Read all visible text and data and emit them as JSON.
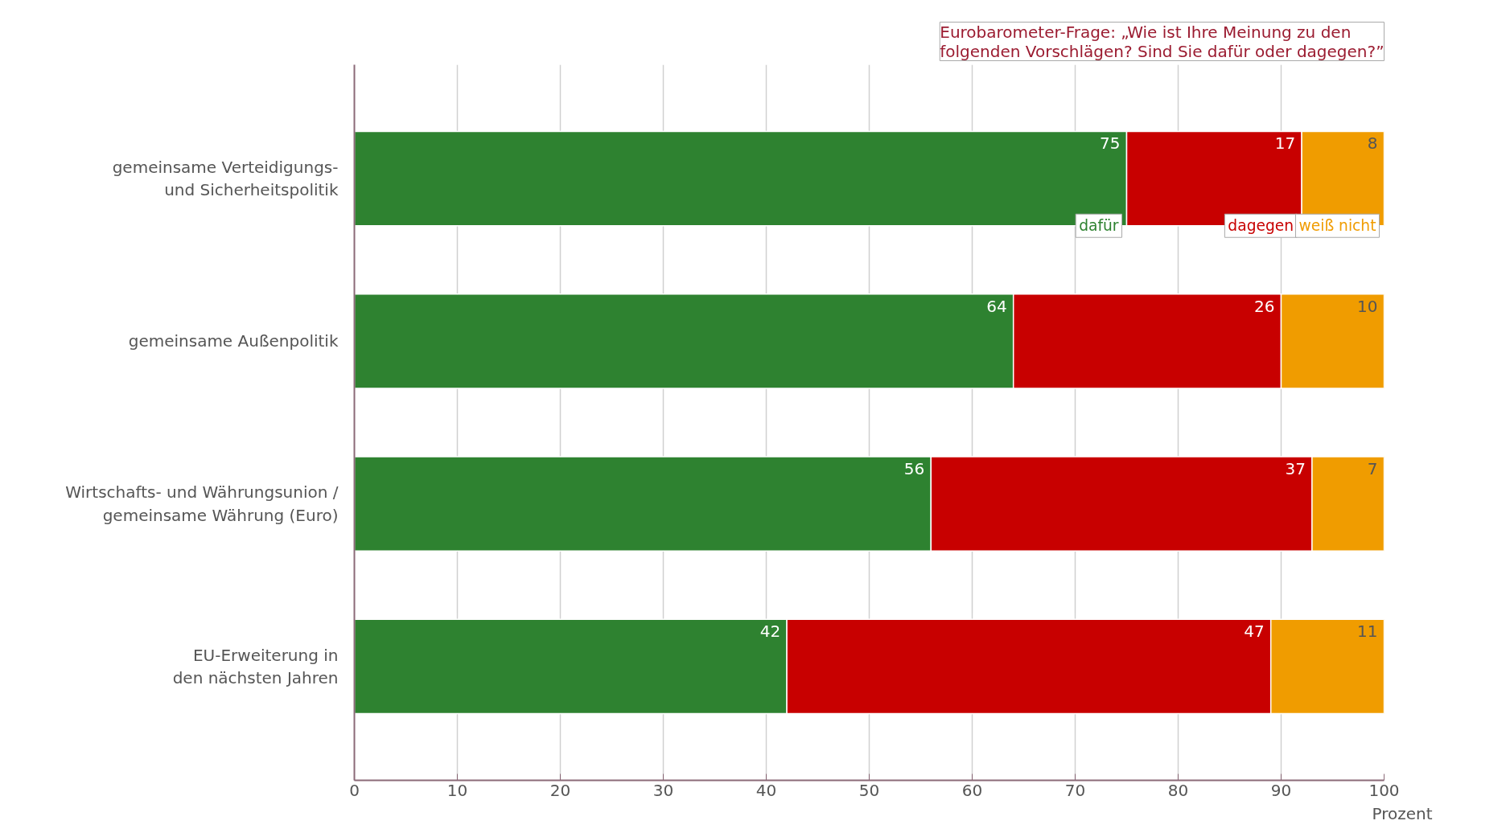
{
  "chart_data": {
    "type": "bar",
    "orientation": "horizontal",
    "stacked": true,
    "title": "Eurobarometer-Frage: „Wie ist Ihre Meinung zu den\nfolgenden Vorschlägen? Sind Sie dafür oder dagegen?”",
    "xlabel": "Prozent",
    "categories": [
      "gemeinsame Verteidigungs-\nund Sicherheitspolitik",
      "gemeinsame Außenpolitik",
      "Wirtschafts- und Währungsunion /\ngemeinsame Währung (Euro)",
      "EU-Erweiterung in\nden nächsten Jahren"
    ],
    "series": [
      {
        "name": "dafür",
        "color": "#2e8230",
        "values": [
          75,
          64,
          56,
          42
        ]
      },
      {
        "name": "dagegen",
        "color": "#c80000",
        "values": [
          17,
          26,
          37,
          47
        ]
      },
      {
        "name": "weiß nicht",
        "color": "#f09c00",
        "values": [
          8,
          10,
          7,
          11
        ]
      }
    ],
    "xlim": [
      0,
      100
    ],
    "xticks": [
      0,
      10,
      20,
      30,
      40,
      50,
      60,
      70,
      80,
      90,
      100
    ],
    "grid": "x",
    "data_labels": true
  }
}
